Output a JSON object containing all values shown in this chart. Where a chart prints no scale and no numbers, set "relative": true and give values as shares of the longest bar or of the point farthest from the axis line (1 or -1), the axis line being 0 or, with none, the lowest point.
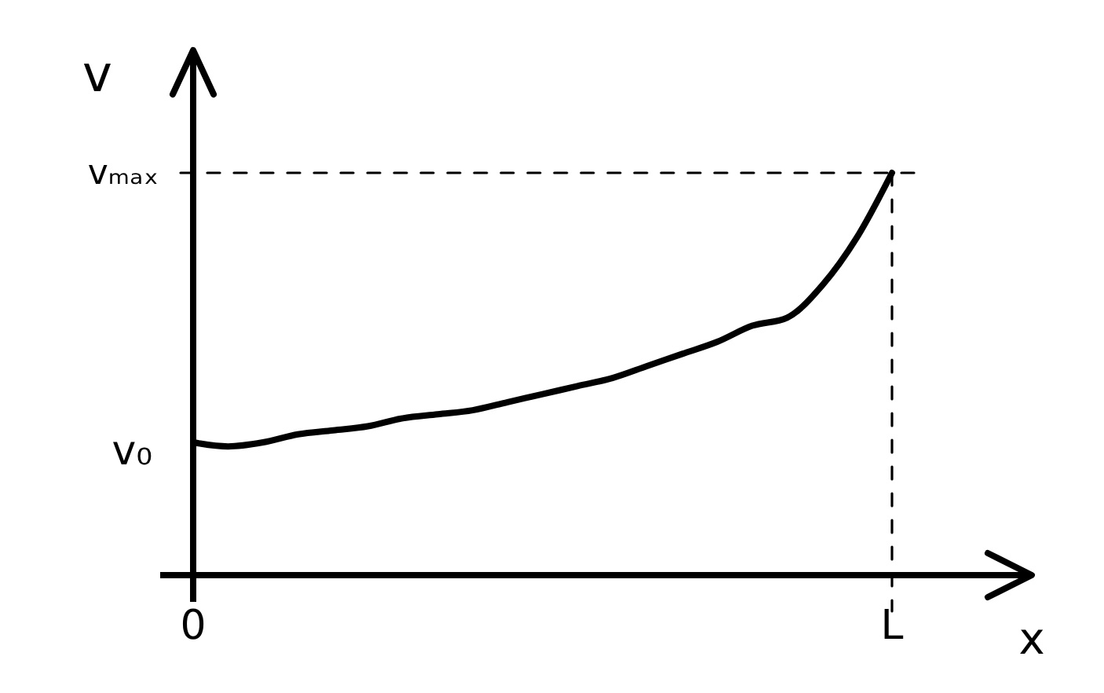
{
  "chart_data": {
    "type": "line",
    "xlabel": "x",
    "ylabel": "v",
    "relative": true,
    "categories": [
      "0",
      null,
      null,
      null,
      null,
      null,
      null,
      null,
      null,
      null,
      null,
      null,
      null,
      null,
      null,
      null,
      null,
      null,
      null,
      null,
      "L"
    ],
    "values": [
      0.33,
      0.32,
      0.33,
      0.35,
      0.36,
      0.37,
      0.39,
      0.4,
      0.41,
      0.43,
      0.45,
      0.47,
      0.49,
      0.52,
      0.55,
      0.58,
      0.62,
      0.64,
      0.72,
      0.84,
      1
    ],
    "color": "#000000",
    "line_style": "solid",
    "ref_lines": [
      {
        "axis": "y",
        "value": 1,
        "label": "vₘₐₓ",
        "line_style": "dashed"
      },
      {
        "axis": "x",
        "value": "L",
        "line_style": "dashed"
      }
    ],
    "annotations": [
      "v₀"
    ]
  }
}
